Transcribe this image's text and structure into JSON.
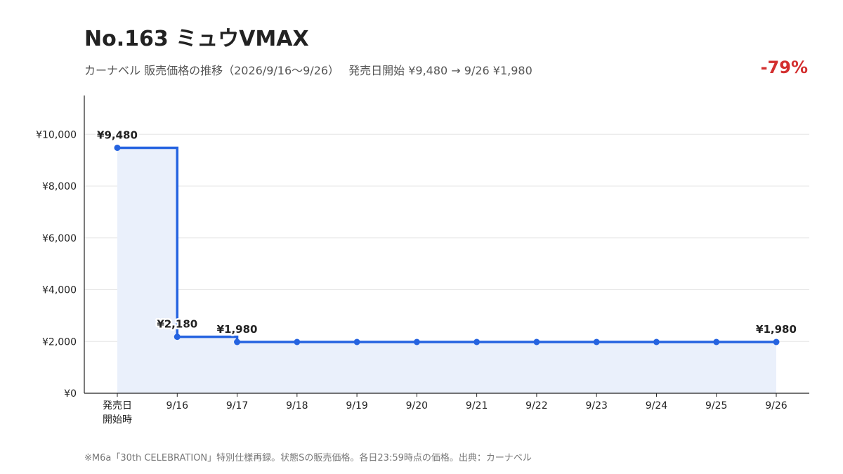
{
  "title": "No.163 ミュウVMAX",
  "subtitle": "カーナベル 販売価格の推移（2026/9/16〜9/26）　 発売日開始 ¥9,480 → 9/26 ¥1,980",
  "change_text": "-79%",
  "footnote": "※M6a「30th CELEBRATION」特別仕様再録。状態Sの販売価格。各日23:59時点の価格。出典：カーナベル",
  "colors": {
    "line": "#2563e0",
    "area": "#eaf0fb",
    "change": "#d32f2f",
    "grid": "#e6e6e6",
    "axis": "#222222"
  },
  "chart_data": {
    "type": "line",
    "step": true,
    "categories": [
      "発売日\n開始時",
      "9/16",
      "9/17",
      "9/18",
      "9/19",
      "9/20",
      "9/21",
      "9/22",
      "9/23",
      "9/24",
      "9/25",
      "9/26"
    ],
    "series": [
      {
        "values": [
          9480,
          2180,
          1980,
          1980,
          1980,
          1980,
          1980,
          1980,
          1980,
          1980,
          1980,
          1980
        ]
      }
    ],
    "data_labels": [
      {
        "index": 0,
        "text": "¥9,480"
      },
      {
        "index": 1,
        "text": "¥2,180"
      },
      {
        "index": 2,
        "text": "¥1,980"
      },
      {
        "index": 11,
        "text": "¥1,980"
      }
    ],
    "yticks": [
      0,
      2000,
      4000,
      6000,
      8000,
      10000
    ],
    "ytick_labels": [
      "¥0",
      "¥2,000",
      "¥4,000",
      "¥6,000",
      "¥8,000",
      "¥10,000"
    ],
    "ylim": [
      0,
      11500
    ],
    "grid": true,
    "legend": "none"
  }
}
